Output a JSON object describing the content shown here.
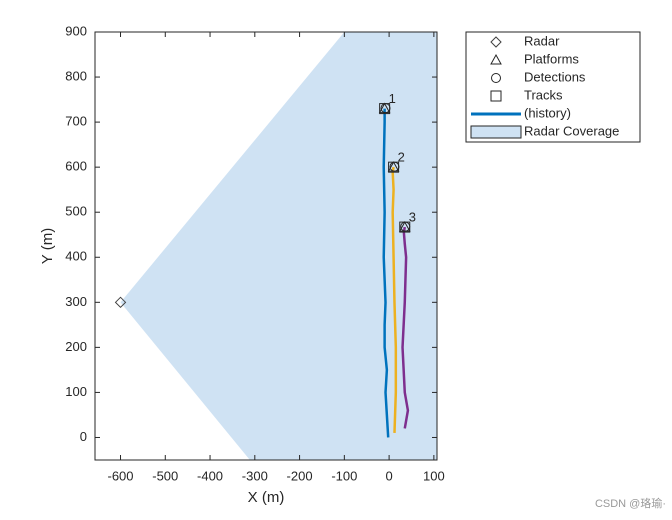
{
  "chart_data": {
    "type": "scatter",
    "xlabel": "X (m)",
    "ylabel": "Y (m)",
    "xlim": [
      -657,
      107
    ],
    "ylim": [
      -50,
      900
    ],
    "xticks": [
      -600,
      -500,
      -400,
      -300,
      -200,
      -100,
      0,
      100
    ],
    "yticks": [
      0,
      100,
      200,
      300,
      400,
      500,
      600,
      700,
      800,
      900
    ],
    "coverage": {
      "name": "Radar Coverage",
      "color": "#cfe2f3",
      "x": [
        -600,
        -100,
        107,
        107,
        -311
      ],
      "y": [
        300,
        900,
        900,
        -50,
        -50
      ]
    },
    "series": [
      {
        "name": "Radar",
        "marker": "diamond",
        "color": "#404040",
        "x": [
          -600
        ],
        "y": [
          300
        ]
      },
      {
        "name": "Platforms",
        "marker": "triangle",
        "color": "#262626",
        "x": [
          -10,
          10,
          35
        ],
        "y": [
          730,
          600,
          467
        ]
      },
      {
        "name": "Detections",
        "marker": "circle",
        "color": "#262626",
        "x": [
          -8,
          12,
          36
        ],
        "y": [
          731,
          601,
          468
        ]
      },
      {
        "name": "Tracks",
        "marker": "square",
        "color": "#262626",
        "x": [
          -10,
          10,
          35
        ],
        "y": [
          730,
          600,
          467
        ],
        "labels": [
          "1",
          "2",
          "3"
        ]
      },
      {
        "name": "(history)",
        "marker": "line",
        "color": "#0072bd",
        "tracks": [
          {
            "color": "#0072bd",
            "x": [
              -2,
              -5,
              -8,
              -5,
              -10,
              -10,
              -8,
              -12,
              -10,
              -12,
              -10,
              -10
            ],
            "y": [
              0,
              50,
              100,
              150,
              200,
              250,
              300,
              400,
              500,
              600,
              700,
              730
            ]
          },
          {
            "color": "#edb120",
            "x": [
              12,
              15,
              15,
              12,
              10,
              8,
              10,
              8,
              10
            ],
            "y": [
              10,
              100,
              200,
              300,
              400,
              500,
              550,
              590,
              600
            ]
          },
          {
            "color": "#7e2f8e",
            "x": [
              35,
              42,
              35,
              30,
              35,
              38,
              35,
              33,
              35
            ],
            "y": [
              20,
              60,
              100,
              200,
              300,
              400,
              430,
              455,
              467
            ]
          }
        ]
      }
    ]
  },
  "watermark": "CSDN @珞瑜·"
}
